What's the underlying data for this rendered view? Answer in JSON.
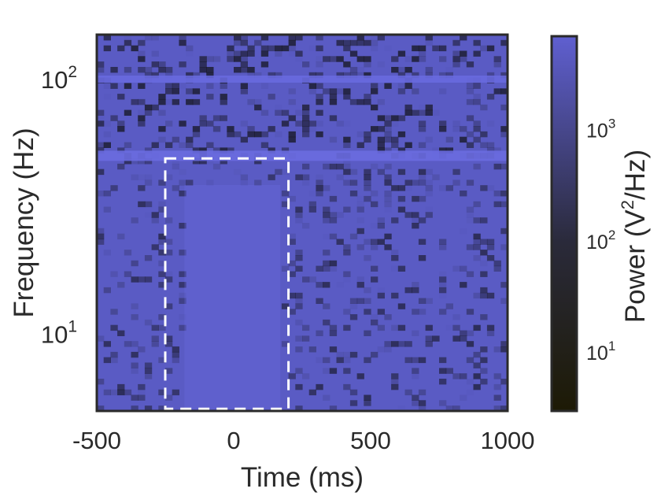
{
  "chart_data": {
    "type": "heatmap",
    "title": "",
    "xlabel": "Time (ms)",
    "ylabel": "Frequency (Hz)",
    "x_range": [
      -500,
      1000
    ],
    "y_range": [
      5,
      150
    ],
    "y_scale": "log",
    "x_ticks": [
      {
        "value": -500,
        "label": "-500"
      },
      {
        "value": 0,
        "label": "0"
      },
      {
        "value": 500,
        "label": "500"
      },
      {
        "value": 1000,
        "label": "1000"
      }
    ],
    "y_ticks": [
      {
        "value": 10,
        "base": "10",
        "exp": "1"
      },
      {
        "value": 100,
        "base": "10",
        "exp": "2"
      }
    ],
    "grid": false,
    "colorbar": {
      "label_prefix": "Power (V",
      "label_sup": "2",
      "label_suffix": "/Hz)",
      "scale": "log",
      "range": [
        3,
        7000
      ],
      "ticks": [
        {
          "value": 10,
          "base": "10",
          "exp": "1"
        },
        {
          "value": 100,
          "base": "10",
          "exp": "2"
        },
        {
          "value": 1000,
          "base": "10",
          "exp": "3"
        }
      ],
      "colors": [
        "#1d1a05",
        "#5f5fd0"
      ]
    },
    "line_noise_bands_hz": [
      50,
      100
    ],
    "annotation": {
      "type": "dashed-rectangle",
      "x_range": [
        -250,
        200
      ],
      "y_range": [
        5.1,
        49
      ],
      "color": "#ffffff"
    }
  }
}
